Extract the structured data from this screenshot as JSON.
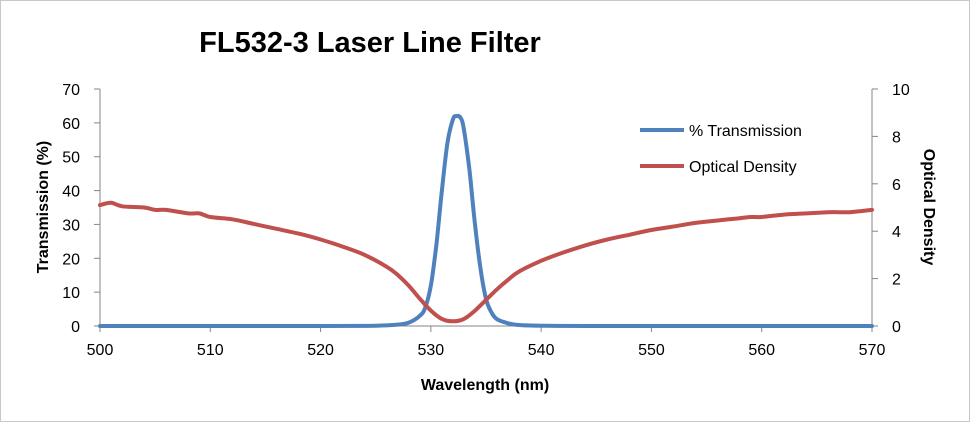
{
  "chart_data": {
    "type": "line",
    "title": "FL532-3 Laser Line Filter",
    "xlabel": "Wavelength (nm)",
    "ylabel": "Transmission (%)",
    "y2label": "Optical Density",
    "xlim": [
      500,
      570
    ],
    "ylim": [
      0,
      70
    ],
    "y2lim": [
      0,
      10
    ],
    "xticks": [
      500,
      510,
      520,
      530,
      540,
      550,
      560,
      570
    ],
    "yticks": [
      0,
      10,
      20,
      30,
      40,
      50,
      60,
      70
    ],
    "y2ticks": [
      0,
      2,
      4,
      6,
      8,
      10
    ],
    "legend_position": "top-right",
    "grid": false,
    "series": [
      {
        "name": "% Transmission",
        "axis": "left",
        "color": "#4f81bd",
        "x": [
          500,
          520,
          525,
          527,
          528,
          529,
          529.5,
          530,
          530.5,
          531,
          531.5,
          532,
          532.3,
          532.7,
          533,
          533.5,
          534,
          534.5,
          535,
          535.5,
          536,
          537,
          538,
          540,
          545,
          570
        ],
        "y": [
          0,
          0,
          0.1,
          0.4,
          1,
          3,
          5.5,
          12,
          24,
          40,
          54,
          61,
          62,
          61.5,
          58,
          46,
          30,
          17,
          8,
          4,
          2,
          0.8,
          0.3,
          0.1,
          0,
          0
        ]
      },
      {
        "name": "Optical Density",
        "axis": "right",
        "color": "#c0504d",
        "x": [
          500,
          501,
          502,
          504,
          505,
          506,
          508,
          509,
          510,
          512,
          514,
          516,
          518,
          520,
          522,
          524,
          526,
          527,
          528,
          529,
          530,
          531,
          532,
          533,
          534,
          535,
          536,
          537,
          538,
          540,
          542,
          544,
          546,
          548,
          550,
          552,
          554,
          556,
          557,
          558,
          559,
          560,
          562,
          564,
          566,
          567,
          568,
          569,
          570
        ],
        "y": [
          5.1,
          5.2,
          5.05,
          5.0,
          4.9,
          4.9,
          4.75,
          4.75,
          4.6,
          4.5,
          4.3,
          4.1,
          3.9,
          3.65,
          3.35,
          3.0,
          2.5,
          2.15,
          1.7,
          1.15,
          0.65,
          0.3,
          0.2,
          0.3,
          0.65,
          1.1,
          1.55,
          1.95,
          2.3,
          2.75,
          3.1,
          3.4,
          3.65,
          3.85,
          4.05,
          4.2,
          4.35,
          4.45,
          4.5,
          4.55,
          4.6,
          4.6,
          4.7,
          4.75,
          4.8,
          4.8,
          4.8,
          4.85,
          4.9
        ]
      }
    ]
  }
}
